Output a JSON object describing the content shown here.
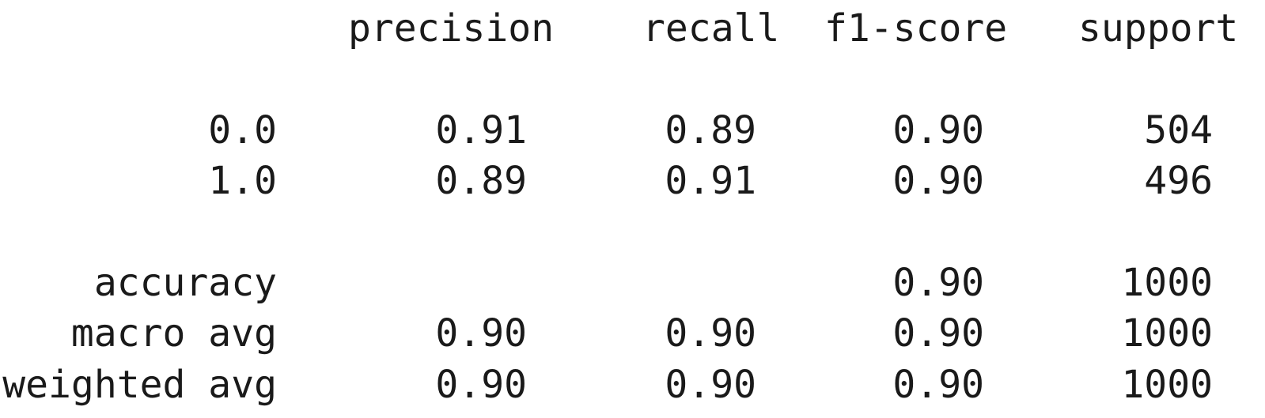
{
  "headers": {
    "precision": "precision",
    "recall": "recall",
    "f1": "f1-score",
    "support": "support"
  },
  "rows": [
    {
      "label": "0.0",
      "precision": "0.91",
      "recall": "0.89",
      "f1": "0.90",
      "support": "504"
    },
    {
      "label": "1.0",
      "precision": "0.89",
      "recall": "0.91",
      "f1": "0.90",
      "support": "496"
    }
  ],
  "summary": [
    {
      "label": "accuracy",
      "precision": "",
      "recall": "",
      "f1": "0.90",
      "support": "1000"
    },
    {
      "label": "macro avg",
      "precision": "0.90",
      "recall": "0.90",
      "f1": "0.90",
      "support": "1000"
    },
    {
      "label": "weighted avg",
      "precision": "0.90",
      "recall": "0.90",
      "f1": "0.90",
      "support": "1000"
    }
  ]
}
